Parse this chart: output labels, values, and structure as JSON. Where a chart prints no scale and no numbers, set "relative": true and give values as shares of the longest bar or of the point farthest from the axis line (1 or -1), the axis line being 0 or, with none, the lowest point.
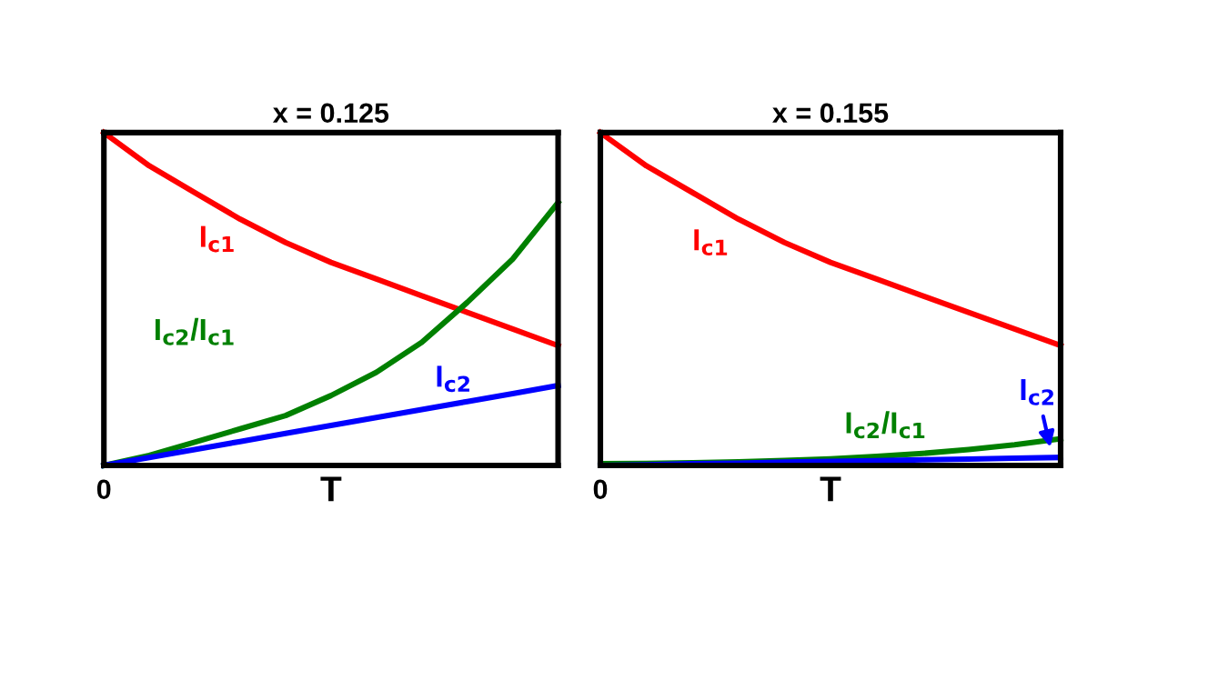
{
  "chart_data": [
    {
      "type": "line",
      "title": "x = 0.125",
      "xlabel": "T",
      "relative": true,
      "legend": false,
      "annotations": [
        "0"
      ],
      "categories": [
        null,
        null,
        null,
        null,
        null,
        null,
        null,
        null,
        null,
        null,
        null
      ],
      "series": [
        {
          "name": "I$_{c1}$",
          "color": "#ff0000",
          "values": [
            1,
            0.9,
            0.82,
            0.74,
            0.67,
            0.61,
            0.56,
            0.51,
            0.46,
            0.41,
            0.36
          ]
        },
        {
          "name": "I$_{c2}$/I$_{c1}$",
          "color": "#008000",
          "values": [
            0,
            0.03,
            0.07,
            0.11,
            0.15,
            0.21,
            0.28,
            0.37,
            0.49,
            0.62,
            0.79
          ]
        },
        {
          "name": "I$_{c2}$",
          "color": "#0000ff",
          "values": [
            0,
            0.024,
            0.048,
            0.072,
            0.096,
            0.12,
            0.144,
            0.168,
            0.192,
            0.216,
            0.24
          ]
        }
      ]
    },
    {
      "type": "line",
      "title": "x = 0.155",
      "xlabel": "T",
      "relative": true,
      "legend": false,
      "annotations": [
        "0"
      ],
      "categories": [
        null,
        null,
        null,
        null,
        null,
        null,
        null,
        null,
        null,
        null,
        null
      ],
      "series": [
        {
          "name": "I$_{c1}$",
          "color": "#ff0000",
          "values": [
            1,
            0.9,
            0.82,
            0.74,
            0.67,
            0.61,
            0.56,
            0.51,
            0.46,
            0.41,
            0.36
          ]
        },
        {
          "name": "I$_{c2}$/I$_{c1}$",
          "color": "#008000",
          "values": [
            0.005,
            0.006,
            0.008,
            0.011,
            0.015,
            0.02,
            0.027,
            0.036,
            0.048,
            0.062,
            0.08
          ]
        },
        {
          "name": "I$_{c2}$",
          "color": "#0000ff",
          "values": [
            0,
            0.002,
            0.005,
            0.007,
            0.01,
            0.012,
            0.014,
            0.017,
            0.019,
            0.022,
            0.024
          ]
        }
      ]
    }
  ]
}
